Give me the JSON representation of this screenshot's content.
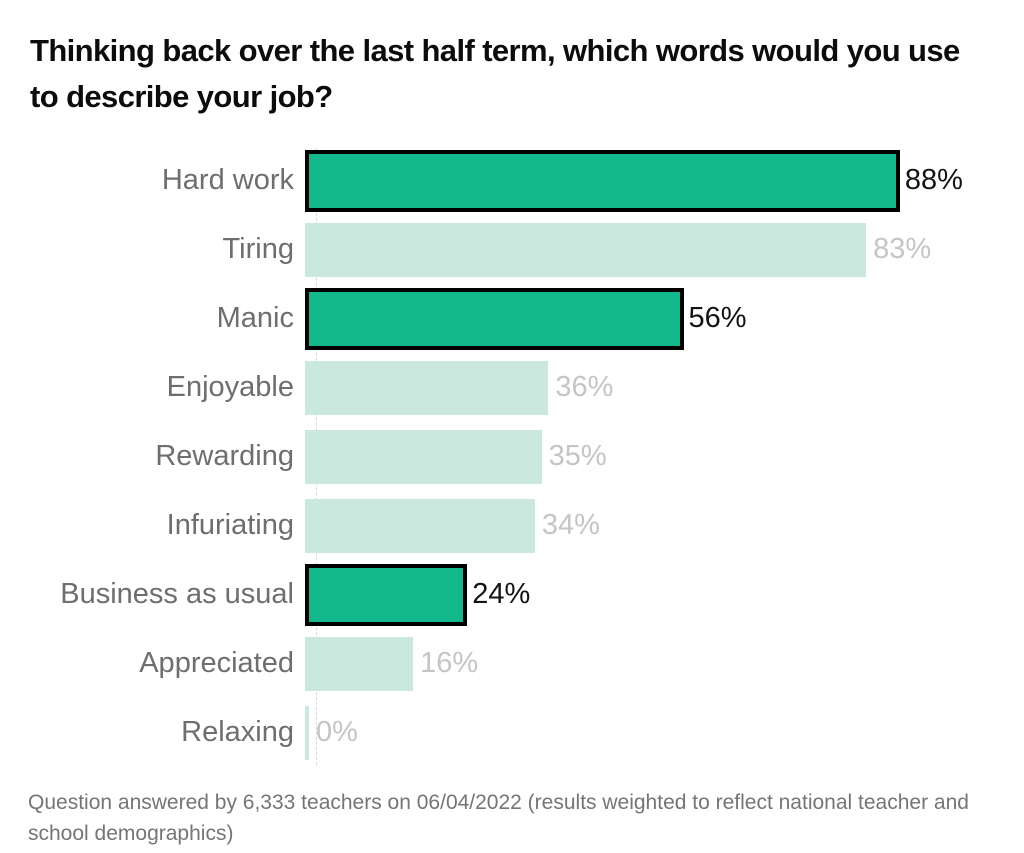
{
  "title": "Thinking back over the last half term, which words would you use to describe your job?",
  "footer": "Question answered by 6,333 teachers on 06/04/2022 (results weighted to reflect national teacher and school demographics)",
  "colors": {
    "highlight_bar": "#12b78c",
    "highlight_border": "#000000",
    "muted_bar": "#cbe8df",
    "category_label": "#6e6e6e",
    "value_label_muted": "#c5c5c5",
    "value_label_highlight": "#141414",
    "title_text": "#0c0c0c",
    "footer_text": "#757575",
    "baseline_dash": "#d8d8d8"
  },
  "chart_data": {
    "type": "bar",
    "orientation": "horizontal",
    "title": "Thinking back over the last half term, which words would you use to describe your job?",
    "xlabel": "",
    "ylabel": "",
    "xlim": [
      0,
      100
    ],
    "grid": false,
    "legend": "none",
    "baseline": "dashed vertical line at 0",
    "categories": [
      "Hard work",
      "Tiring",
      "Manic",
      "Enjoyable",
      "Rewarding",
      "Infuriating",
      "Business as usual",
      "Appreciated",
      "Relaxing"
    ],
    "values": [
      88,
      83,
      56,
      36,
      35,
      34,
      24,
      16,
      0
    ],
    "value_labels": [
      "88%",
      "83%",
      "56%",
      "36%",
      "35%",
      "34%",
      "24%",
      "16%",
      "0%"
    ],
    "highlighted": [
      true,
      false,
      true,
      false,
      false,
      false,
      true,
      false,
      false
    ],
    "source_note": "Question answered by 6,333 teachers on 06/04/2022 (results weighted to reflect national teacher and school demographics)"
  }
}
